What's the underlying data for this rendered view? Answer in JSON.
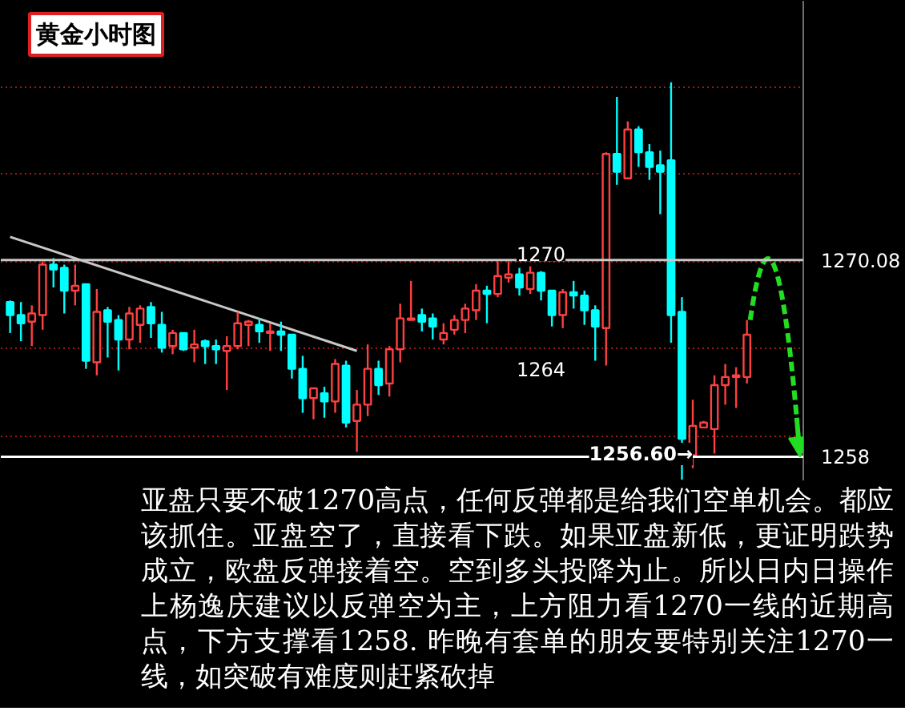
{
  "chart_data": {
    "type": "candlestick",
    "title": "黄金小时图",
    "categories": [
      null,
      null,
      null,
      null,
      null,
      null,
      null,
      null,
      null,
      null,
      null,
      null,
      null,
      null,
      null,
      null,
      null,
      null,
      null,
      null,
      null,
      null,
      null,
      null,
      null,
      null,
      null,
      null,
      null,
      null,
      null,
      null,
      null,
      null,
      null,
      null,
      null,
      null,
      null,
      null,
      null,
      null,
      null,
      null,
      null,
      null,
      null,
      null,
      null,
      null,
      null,
      null,
      null,
      null,
      null,
      null,
      null,
      null,
      null,
      null,
      null,
      null,
      null,
      null,
      null,
      null,
      null,
      null,
      null
    ],
    "ohlc": [
      [
        1267.5,
        1267.6,
        1265.6,
        1266.7
      ],
      [
        1266.7,
        1267.5,
        1265.1,
        1266.2
      ],
      [
        1266.3,
        1267.3,
        1264.8,
        1266.8
      ],
      [
        1266.7,
        1270.0,
        1265.8,
        1269.8
      ],
      [
        1269.8,
        1270.2,
        1268.4,
        1269.5
      ],
      [
        1269.6,
        1269.8,
        1266.8,
        1268.2
      ],
      [
        1268.2,
        1269.8,
        1267.3,
        1268.5
      ],
      [
        1268.6,
        1268.6,
        1263.4,
        1263.9
      ],
      [
        1263.8,
        1268.3,
        1263.0,
        1266.9
      ],
      [
        1267.0,
        1267.2,
        1264.1,
        1266.3
      ],
      [
        1266.4,
        1266.7,
        1263.3,
        1265.2
      ],
      [
        1265.2,
        1267.2,
        1264.6,
        1266.8
      ],
      [
        1266.1,
        1267.3,
        1265.0,
        1267.1
      ],
      [
        1267.2,
        1267.5,
        1265.3,
        1266.2
      ],
      [
        1266.1,
        1266.9,
        1264.4,
        1264.7
      ],
      [
        1264.8,
        1265.8,
        1264.3,
        1265.6
      ],
      [
        1265.6,
        1265.6,
        1264.5,
        1264.6
      ],
      [
        1264.7,
        1265.8,
        1263.8,
        1264.9
      ],
      [
        1265.1,
        1265.2,
        1263.7,
        1264.8
      ],
      [
        1264.8,
        1265.2,
        1263.7,
        1264.6
      ],
      [
        1264.5,
        1265.4,
        1262.1,
        1264.8
      ],
      [
        1264.8,
        1266.9,
        1264.6,
        1266.2
      ],
      [
        1266.1,
        1266.4,
        1264.8,
        1266.3
      ],
      [
        1266.1,
        1266.5,
        1265.0,
        1265.7
      ],
      [
        1265.6,
        1266.2,
        1264.5,
        1265.7
      ],
      [
        1265.7,
        1266.3,
        1264.5,
        1265.5
      ],
      [
        1265.5,
        1265.5,
        1262.8,
        1263.4
      ],
      [
        1263.4,
        1264.2,
        1260.7,
        1261.6
      ],
      [
        1261.6,
        1262.2,
        1260.3,
        1262.2
      ],
      [
        1261.9,
        1262.3,
        1260.4,
        1261.4
      ],
      [
        1261.4,
        1264.0,
        1260.7,
        1263.7
      ],
      [
        1263.6,
        1263.9,
        1259.8,
        1260.1
      ],
      [
        1260.2,
        1262.1,
        1258.3,
        1261.2
      ],
      [
        1261.2,
        1264.9,
        1260.5,
        1263.4
      ],
      [
        1263.4,
        1263.9,
        1261.8,
        1262.4
      ],
      [
        1262.5,
        1264.8,
        1261.7,
        1264.6
      ],
      [
        1264.6,
        1267.4,
        1263.8,
        1266.5
      ],
      [
        1266.4,
        1268.8,
        1266.4,
        1266.5
      ],
      [
        1266.7,
        1267.1,
        1265.7,
        1266.3
      ],
      [
        1266.5,
        1266.8,
        1265.2,
        1266.0
      ],
      [
        1265.2,
        1266.2,
        1264.9,
        1265.6
      ],
      [
        1265.8,
        1266.7,
        1265.5,
        1266.4
      ],
      [
        1266.4,
        1267.4,
        1265.6,
        1267.1
      ],
      [
        1267.0,
        1268.6,
        1266.4,
        1268.2
      ],
      [
        1268.2,
        1268.5,
        1266.2,
        1268.0
      ],
      [
        1268.0,
        1270.0,
        1267.8,
        1269.1
      ],
      [
        1269.0,
        1270.0,
        1268.7,
        1269.2
      ],
      [
        1269.2,
        1269.6,
        1267.9,
        1268.4
      ],
      [
        1268.3,
        1269.7,
        1268.0,
        1269.3
      ],
      [
        1269.3,
        1269.4,
        1267.6,
        1268.2
      ],
      [
        1268.2,
        1268.2,
        1266.0,
        1266.7
      ],
      [
        1266.7,
        1268.3,
        1265.9,
        1268.1
      ],
      [
        1268.1,
        1268.8,
        1267.1,
        1267.9
      ],
      [
        1267.9,
        1268.2,
        1266.1,
        1267.0
      ],
      [
        1267.0,
        1267.3,
        1263.9,
        1266.0
      ],
      [
        1265.9,
        1276.7,
        1263.6,
        1276.6
      ],
      [
        1276.6,
        1280.1,
        1274.7,
        1275.5
      ],
      [
        1275.1,
        1278.6,
        1275.1,
        1278.1
      ],
      [
        1278.1,
        1278.3,
        1275.8,
        1276.7
      ],
      [
        1276.7,
        1277.2,
        1275.0,
        1275.8
      ],
      [
        1275.9,
        1276.8,
        1272.9,
        1275.5
      ],
      [
        1276.2,
        1281.0,
        1265.0,
        1266.7
      ],
      [
        1266.9,
        1267.8,
        1256.6,
        1259.1
      ],
      [
        1258.1,
        1261.5,
        1257.3,
        1259.9
      ],
      [
        1259.8,
        1260.2,
        1259.8,
        1260.1
      ],
      [
        1259.7,
        1263.0,
        1258.2,
        1262.4
      ],
      [
        1262.4,
        1263.7,
        1261.2,
        1262.9
      ],
      [
        1262.9,
        1263.5,
        1261.0,
        1263.0
      ],
      [
        1262.9,
        1266.4,
        1262.5,
        1265.5
      ]
    ],
    "colors": [
      "#00ffff",
      "#00ffff",
      "#ff4040",
      "#ff4040",
      "#00ffff",
      "#00ffff",
      "#ff4040",
      "#00ffff",
      "#ff4040",
      "#00ffff",
      "#00ffff",
      "#ff4040",
      "#ff4040",
      "#00ffff",
      "#00ffff",
      "#ff4040",
      "#00ffff",
      "#ff4040",
      "#00ffff",
      "#00ffff",
      "#ff4040",
      "#ff4040",
      "#ff4040",
      "#00ffff",
      "#ff4040",
      "#00ffff",
      "#00ffff",
      "#00ffff",
      "#ff4040",
      "#00ffff",
      "#ff4040",
      "#00ffff",
      "#ff4040",
      "#ff4040",
      "#00ffff",
      "#ff4040",
      "#ff4040",
      "#ff4040",
      "#00ffff",
      "#00ffff",
      "#ff4040",
      "#ff4040",
      "#ff4040",
      "#ff4040",
      "#00ffff",
      "#ff4040",
      "#ff4040",
      "#00ffff",
      "#ff4040",
      "#00ffff",
      "#00ffff",
      "#ff4040",
      "#00ffff",
      "#00ffff",
      "#00ffff",
      "#ff4040",
      "#00ffff",
      "#ff4040",
      "#00ffff",
      "#00ffff",
      "#00ffff",
      "#00ffff",
      "#00ffff",
      "#ff4040",
      "#ff4040",
      "#ff4040",
      "#ff4040",
      "#ff4040",
      "#ff4040"
    ],
    "series": [
      {
        "type": "line",
        "values": [
          1271.5,
          null,
          null,
          null,
          null,
          null,
          null,
          null,
          null,
          null,
          null,
          null,
          null,
          null,
          null,
          null,
          null,
          null,
          null,
          null,
          null,
          null,
          null,
          null,
          null,
          null,
          null,
          null,
          null,
          null,
          null,
          null,
          1264.5,
          null,
          null,
          null,
          null,
          null,
          null,
          null,
          null,
          null,
          null,
          null,
          null,
          null,
          null,
          null,
          null,
          null,
          null,
          null,
          null,
          null,
          null,
          null,
          null,
          null,
          null,
          null,
          null,
          null,
          null,
          null,
          null,
          null,
          null,
          null,
          null
        ],
        "color": "#c8c8c8"
      }
    ],
    "ylim": [
      1256.5,
      1286
    ],
    "yticks": [
      {
        "value": 1258,
        "label": "1258"
      },
      {
        "value": 1259.3,
        "label": null
      },
      {
        "value": 1264.65,
        "label": null
      },
      {
        "value": 1270.0,
        "label": null
      },
      {
        "value": 1270.08,
        "label": "1270.08"
      },
      {
        "value": 1275.35,
        "label": null
      },
      {
        "value": 1280.7,
        "label": null
      }
    ],
    "tick_labels": "y",
    "grid": "y",
    "ref_lines": [
      {
        "axis": "y",
        "value": 1270.08,
        "color": "#c8c8c8"
      },
      {
        "axis": "y",
        "value": 1258,
        "color": "#ffffff"
      }
    ],
    "annotations": [
      "1270",
      "1264",
      "1256.60→",
      "亚盘只要不破1270高点，任何反弹都是给我们空单机会。都应该抓住。亚盘空了，直接看下跌。如果亚盘新低，更证明跌势成立，欧盘反弹接着空。空到多头投降为止。所以日内日操作上杨逸庆建议以反弹空为主，上方阻力看1270一线的近期高点，下方支撑看1258. 昨晚有套单的朋友要特别关注1270一线，如突破有难度则赶紧砍掉"
    ]
  }
}
